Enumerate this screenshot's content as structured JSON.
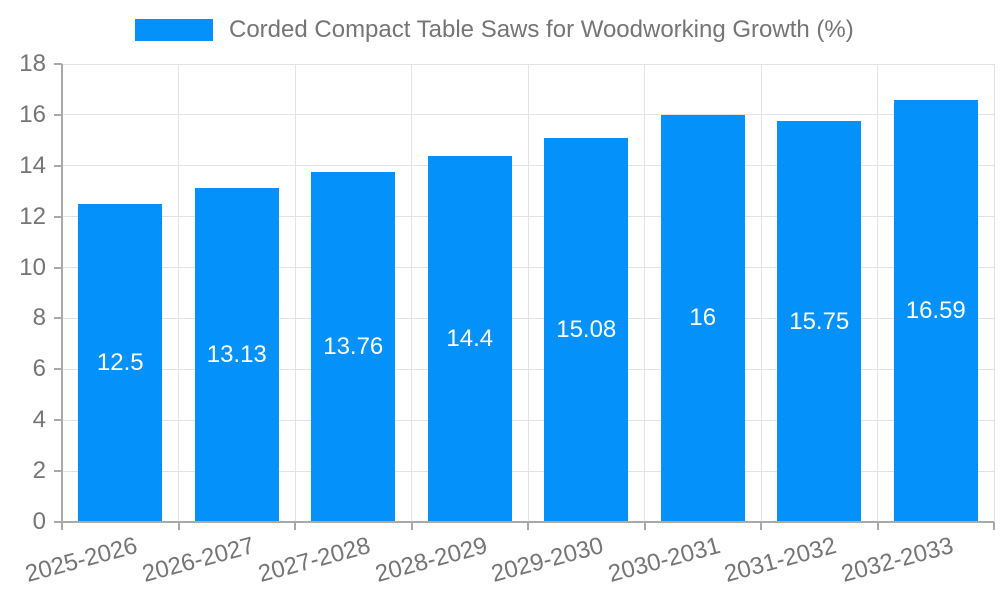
{
  "legend": {
    "label": "Corded Compact Table Saws for Woodworking Growth (%)"
  },
  "chart_data": {
    "type": "bar",
    "title": "Corded Compact Table Saws for Woodworking Growth (%)",
    "categories": [
      "2025-2026",
      "2026-2027",
      "2027-2028",
      "2028-2029",
      "2029-2030",
      "2030-2031",
      "2031-2032",
      "2032-2033"
    ],
    "values": [
      12.5,
      13.13,
      13.76,
      14.4,
      15.08,
      16,
      15.75,
      16.59
    ],
    "value_labels": [
      "12.5",
      "13.13",
      "13.76",
      "14.4",
      "15.08",
      "16",
      "15.75",
      "16.59"
    ],
    "xlabel": "",
    "ylabel": "",
    "ylim": [
      0,
      18
    ],
    "yticks": [
      0,
      2,
      4,
      6,
      8,
      10,
      12,
      14,
      16,
      18
    ],
    "grid": true,
    "legend_position": "top-center",
    "bar_label_position": "inside-center",
    "x_label_rotation_deg": -15,
    "colors": {
      "bar": "#0591FA",
      "value_label": "#FFFFFF",
      "grid_line": "#E3E3E3",
      "axis_line": "#A9A9A9",
      "tick_label": "#757575",
      "legend_text": "#757575",
      "background": "#FFFFFF"
    }
  }
}
